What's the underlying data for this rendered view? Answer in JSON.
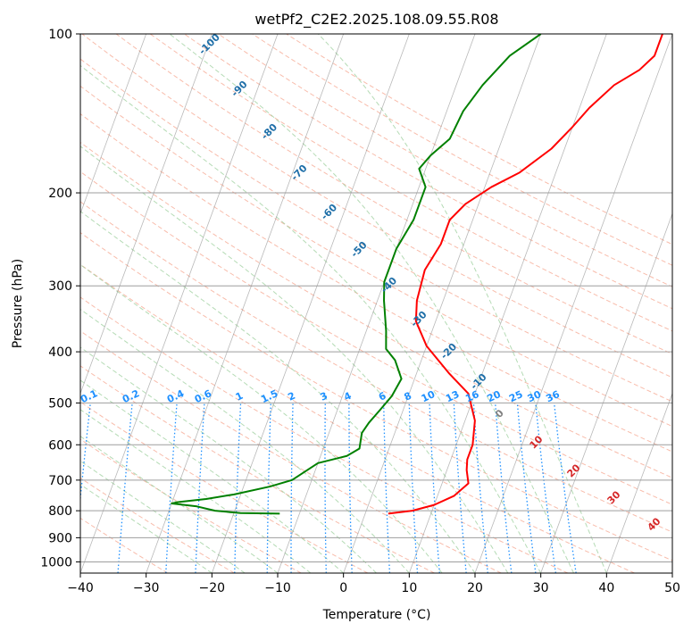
{
  "chart_data": {
    "type": "line",
    "title": "wetPf2_C2E2.2025.108.09.55.R08",
    "xlabel": "Temperature (°C)",
    "ylabel": "Pressure (hPa)",
    "xlim": [
      -40,
      50
    ],
    "ylim": [
      1050,
      100
    ],
    "y_scale": "log",
    "grid": true,
    "x_ticks": [
      "−40",
      "−30",
      "−20",
      "−10",
      "0",
      "10",
      "20",
      "30",
      "40",
      "50"
    ],
    "x_tick_values": [
      -40,
      -30,
      -20,
      -10,
      0,
      10,
      20,
      30,
      40,
      50
    ],
    "y_ticks": [
      "100",
      "200",
      "300",
      "400",
      "500",
      "600",
      "700",
      "800",
      "900",
      "1000"
    ],
    "y_tick_values": [
      100,
      200,
      300,
      400,
      500,
      600,
      700,
      800,
      900,
      1000
    ],
    "series": [
      {
        "color": "#ff0000",
        "points": [
          [
            3.5,
            810
          ],
          [
            7,
            800
          ],
          [
            10,
            780
          ],
          [
            12.5,
            750
          ],
          [
            14,
            710
          ],
          [
            13,
            670
          ],
          [
            12.5,
            640
          ],
          [
            12.5,
            600
          ],
          [
            11.5,
            540
          ],
          [
            9,
            480
          ],
          [
            5,
            440
          ],
          [
            0,
            390
          ],
          [
            -3,
            350
          ],
          [
            -4,
            320
          ],
          [
            -4.5,
            280
          ],
          [
            -3.5,
            250
          ],
          [
            -3.5,
            225
          ],
          [
            -2,
            210
          ],
          [
            1,
            195
          ],
          [
            4.5,
            183
          ],
          [
            8,
            165
          ],
          [
            10,
            150
          ],
          [
            11.5,
            138
          ],
          [
            14,
            125
          ],
          [
            17,
            117
          ],
          [
            18.5,
            110
          ],
          [
            18.5,
            100
          ]
        ]
      },
      {
        "color": "#008000",
        "points": [
          [
            -13,
            810
          ],
          [
            -19,
            808
          ],
          [
            -23,
            800
          ],
          [
            -26,
            785
          ],
          [
            -30,
            775
          ],
          [
            -29,
            770
          ],
          [
            -25,
            760
          ],
          [
            -21,
            745
          ],
          [
            -16,
            720
          ],
          [
            -13,
            700
          ],
          [
            -10,
            650
          ],
          [
            -6,
            630
          ],
          [
            -4.5,
            610
          ],
          [
            -5,
            570
          ],
          [
            -4.5,
            545
          ],
          [
            -3.5,
            515
          ],
          [
            -2.5,
            485
          ],
          [
            -2,
            450
          ],
          [
            -4,
            415
          ],
          [
            -6,
            395
          ],
          [
            -7,
            365
          ],
          [
            -9,
            320
          ],
          [
            -10,
            295
          ],
          [
            -10,
            255
          ],
          [
            -9,
            225
          ],
          [
            -9,
            195
          ],
          [
            -11,
            180
          ],
          [
            -10,
            170
          ],
          [
            -8,
            158
          ],
          [
            -7.5,
            140
          ],
          [
            -6,
            125
          ],
          [
            -3.5,
            110
          ],
          [
            0,
            100
          ]
        ]
      }
    ],
    "dry_adiabat_labels": [
      "-100",
      "-90",
      "-80",
      "-70",
      "-60",
      "-50",
      "-40",
      "-30",
      "-20",
      "-10"
    ],
    "mixing_ratio_labels": [
      "0.1",
      "0.2",
      "0.4",
      "0.6",
      "1",
      "1.5",
      "2",
      "3",
      "4",
      "6",
      "8",
      "10",
      "13",
      "16",
      "20",
      "25",
      "30",
      "36"
    ],
    "moist_adiabat_labels": [
      "0",
      "10",
      "20",
      "30",
      "40"
    ],
    "colors": {
      "temperature": "#ff0000",
      "dewpoint": "#008000",
      "dry_adiabat": "#f5a58f",
      "moist_adiabat": "#9ccf9c",
      "mixing_ratio": "#1e90ff",
      "isotherm_skew": "#808080",
      "dry_label": "#1f6fa8",
      "moist_label": "#d62728",
      "zero_label": "#808080"
    }
  }
}
